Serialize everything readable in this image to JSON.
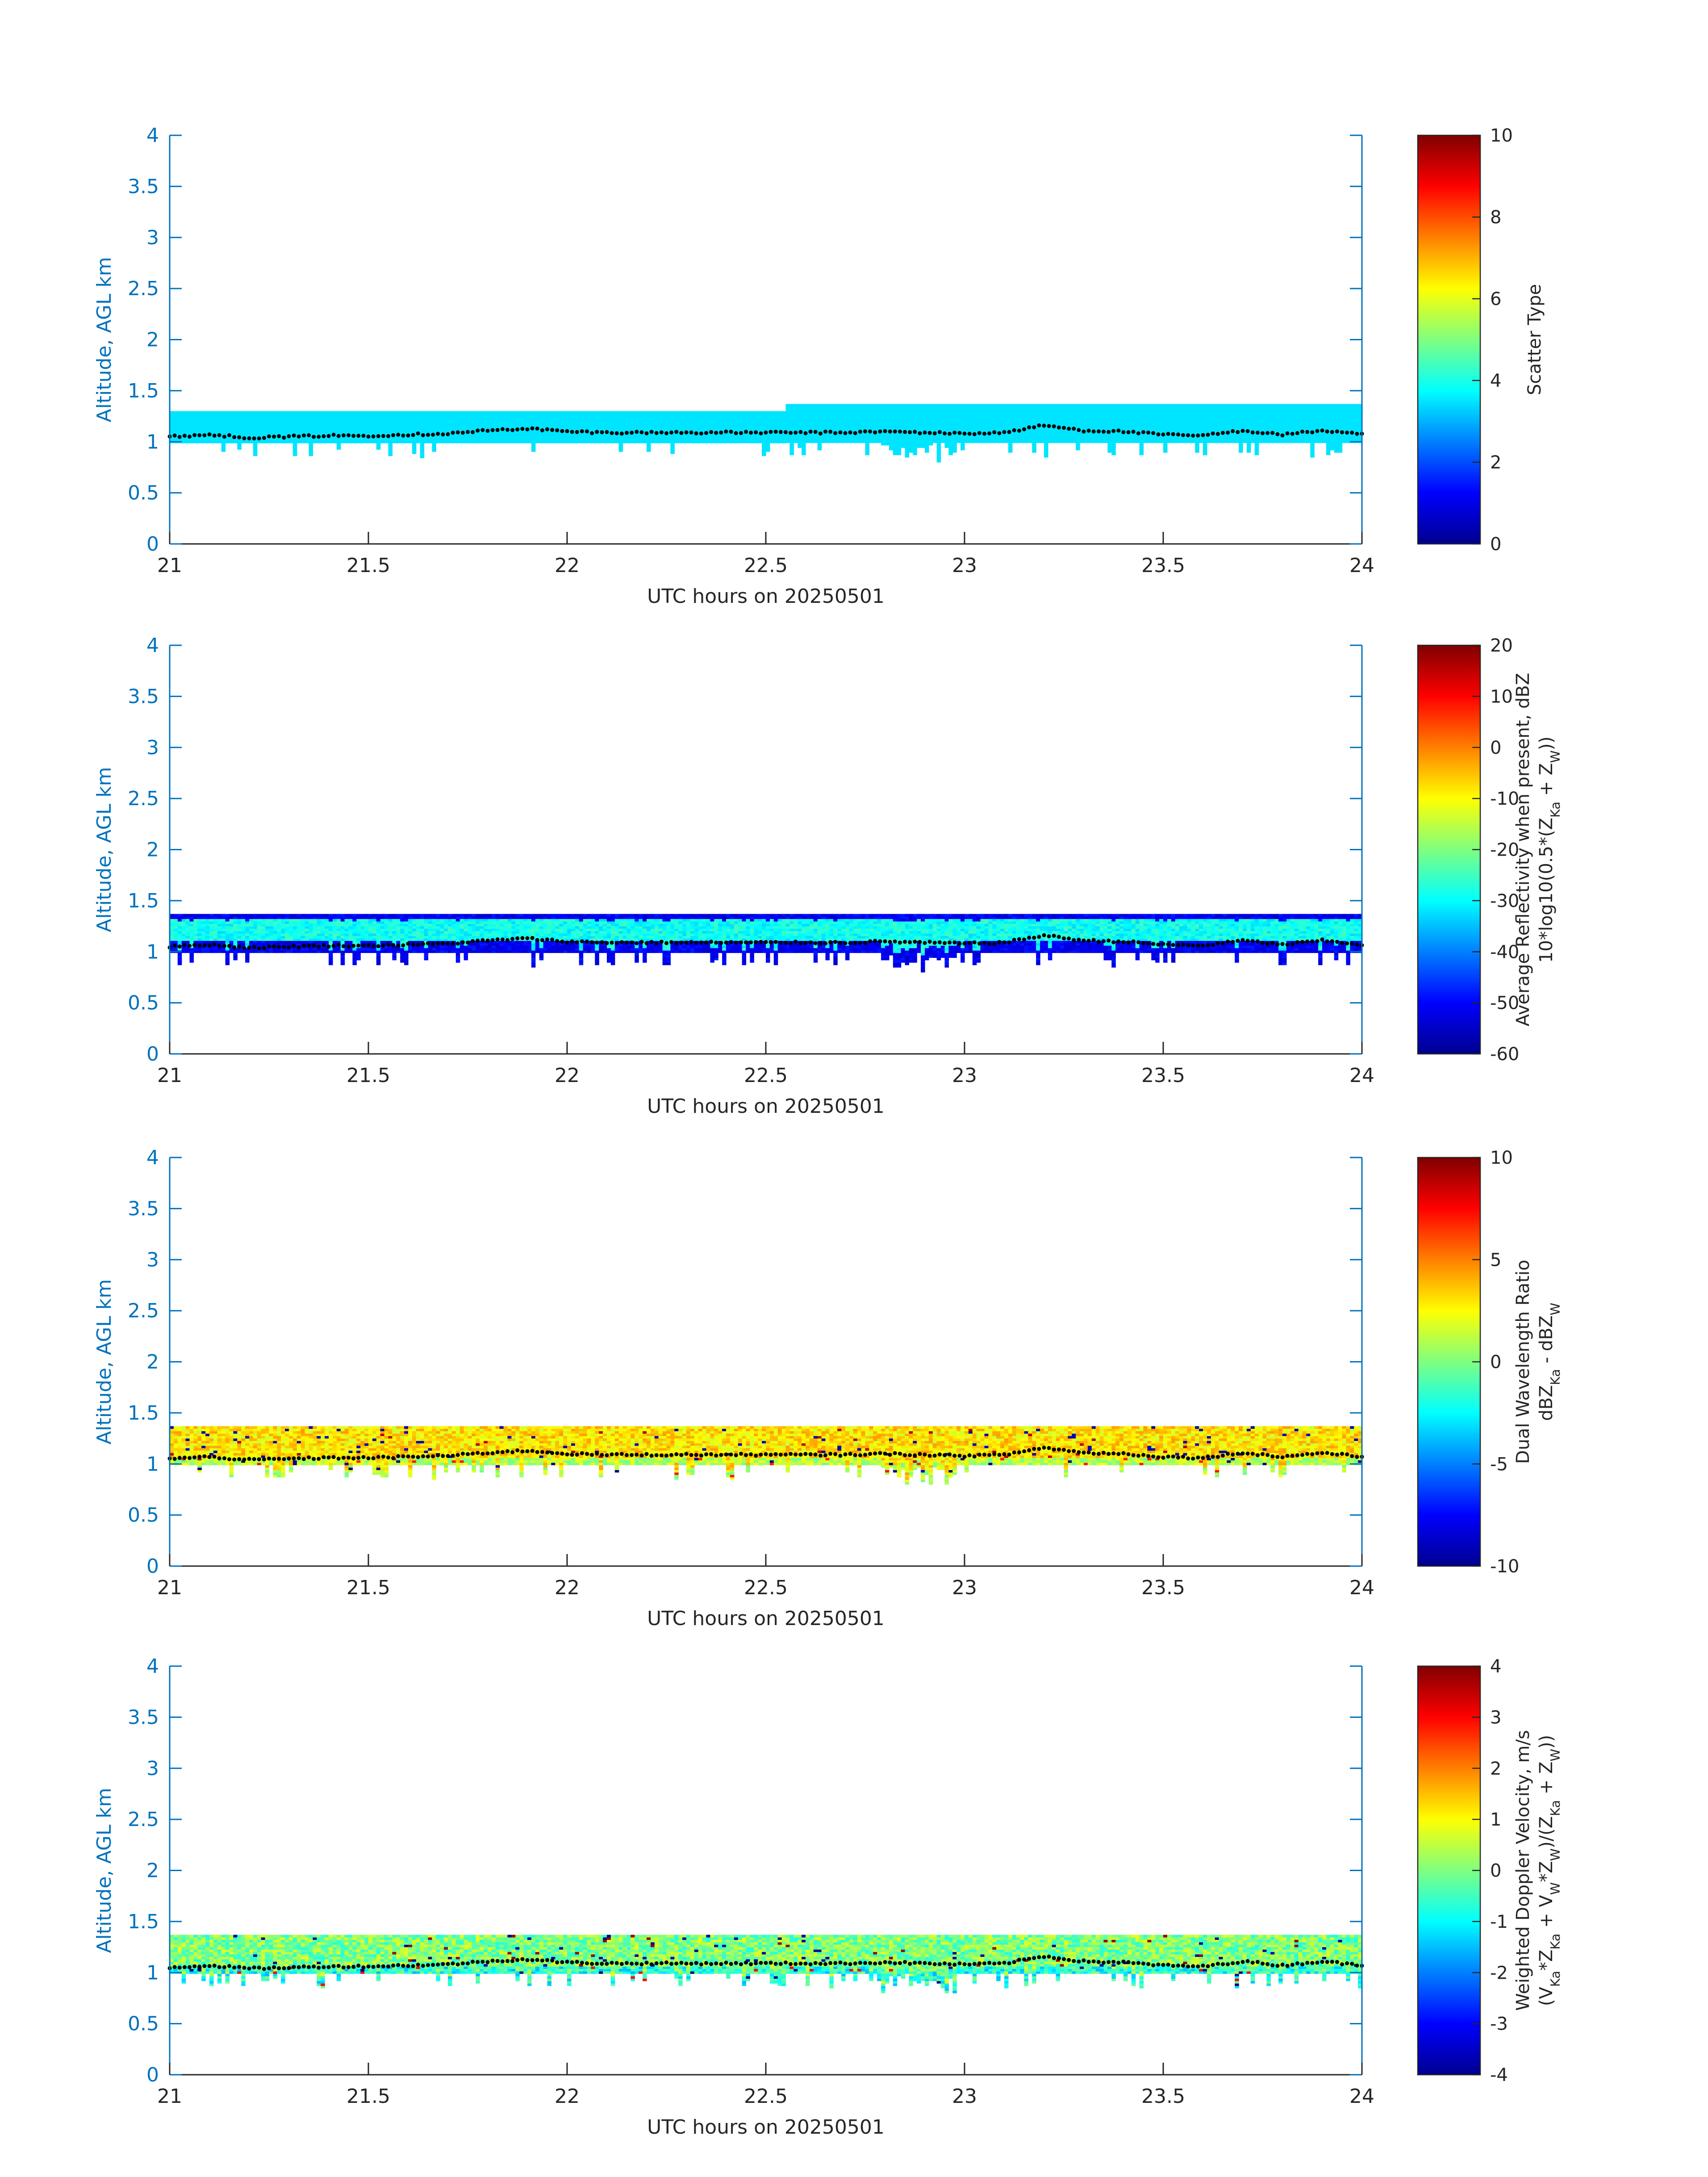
{
  "figure": {
    "background": "#ffffff",
    "axis_color": "#0072bd",
    "text_color": "#262626",
    "colormap": "jet"
  },
  "chart_data": [
    {
      "type": "heatmap",
      "xlabel": "UTC hours on 20250501",
      "ylabel": "Altitude, AGL km",
      "xlim": [
        21,
        24
      ],
      "ylim": [
        0,
        4
      ],
      "xticks": [
        "21",
        "21.5",
        "22",
        "22.5",
        "23",
        "23.5",
        "24"
      ],
      "yticks": [
        "0",
        "0.5",
        "1",
        "1.5",
        "2",
        "2.5",
        "3",
        "3.5",
        "4"
      ],
      "colorbar": {
        "label_lines": [
          "Scatter Type"
        ],
        "clim": [
          0,
          10
        ],
        "ticks": [
          "0",
          "2",
          "4",
          "6",
          "8",
          "10"
        ]
      },
      "field": "scatter",
      "layer": {
        "base_km": 0.98,
        "top_km": 1.3,
        "top_km_after_22_55": 1.37,
        "value": 3.5
      }
    },
    {
      "type": "heatmap",
      "xlabel": "UTC hours on 20250501",
      "ylabel": "Altitude, AGL km",
      "xlim": [
        21,
        24
      ],
      "ylim": [
        0,
        4
      ],
      "xticks": [
        "21",
        "21.5",
        "22",
        "22.5",
        "23",
        "23.5",
        "24"
      ],
      "yticks": [
        "0",
        "0.5",
        "1",
        "1.5",
        "2",
        "2.5",
        "3",
        "3.5",
        "4"
      ],
      "colorbar": {
        "label_lines": [
          "Average Reflectivity when present, dBZ",
          "10*log10(0.5*(Z_Ka + Z_W))"
        ],
        "clim": [
          -60,
          20
        ],
        "ticks": [
          "-60",
          "-50",
          "-40",
          "-30",
          "-20",
          "-10",
          "0",
          "10",
          "20"
        ]
      },
      "field": "reflectivity",
      "layer": {
        "base_km": 0.98,
        "top_km": 1.37,
        "core_dbz": -33,
        "edge_dbz": -54
      }
    },
    {
      "type": "heatmap",
      "xlabel": "UTC hours on 20250501",
      "ylabel": "Altitude, AGL km",
      "xlim": [
        21,
        24
      ],
      "ylim": [
        0,
        4
      ],
      "xticks": [
        "21",
        "21.5",
        "22",
        "22.5",
        "23",
        "23.5",
        "24"
      ],
      "yticks": [
        "0",
        "0.5",
        "1",
        "1.5",
        "2",
        "2.5",
        "3",
        "3.5",
        "4"
      ],
      "colorbar": {
        "label_lines": [
          "Dual Wavelength Ratio",
          "dBZ_Ka - dBZ_W"
        ],
        "clim": [
          -10,
          10
        ],
        "ticks": [
          "-10",
          "-5",
          "0",
          "5",
          "10"
        ]
      },
      "field": "dwr",
      "layer": {
        "base_km": 0.98,
        "top_km": 1.37,
        "typical_db": 3
      }
    },
    {
      "type": "heatmap",
      "xlabel": "UTC hours on 20250501",
      "ylabel": "Altitude, AGL km",
      "xlim": [
        21,
        24
      ],
      "ylim": [
        0,
        4
      ],
      "xticks": [
        "21",
        "21.5",
        "22",
        "22.5",
        "23",
        "23.5",
        "24"
      ],
      "yticks": [
        "0",
        "0.5",
        "1",
        "1.5",
        "2",
        "2.5",
        "3",
        "3.5",
        "4"
      ],
      "colorbar": {
        "label_lines": [
          "Weighted Doppler Velocity, m/s",
          "(V_Ka*Z_Ka + V_W*Z_W)/(Z_Ka + Z_W))"
        ],
        "clim": [
          -4,
          4
        ],
        "ticks": [
          "-4",
          "-3",
          "-2",
          "-1",
          "0",
          "1",
          "2",
          "3",
          "4"
        ]
      },
      "field": "velocity",
      "layer": {
        "base_km": 0.98,
        "top_km": 1.37,
        "typical_ms": -0.3
      }
    }
  ],
  "cloud_base_line": {
    "style": "black dotted",
    "hours": [
      21.0,
      21.1,
      21.2,
      21.3,
      21.4,
      21.5,
      21.6,
      21.7,
      21.8,
      21.9,
      22.0,
      22.1,
      22.2,
      22.3,
      22.4,
      22.5,
      22.6,
      22.7,
      22.8,
      22.9,
      23.0,
      23.1,
      23.2,
      23.3,
      23.4,
      23.5,
      23.6,
      23.7,
      23.8,
      23.9,
      24.0
    ],
    "altitude_km": [
      1.05,
      1.07,
      1.04,
      1.05,
      1.06,
      1.06,
      1.07,
      1.08,
      1.11,
      1.13,
      1.1,
      1.09,
      1.09,
      1.09,
      1.09,
      1.09,
      1.09,
      1.09,
      1.1,
      1.09,
      1.08,
      1.09,
      1.16,
      1.11,
      1.1,
      1.07,
      1.06,
      1.11,
      1.07,
      1.11,
      1.07
    ]
  }
}
